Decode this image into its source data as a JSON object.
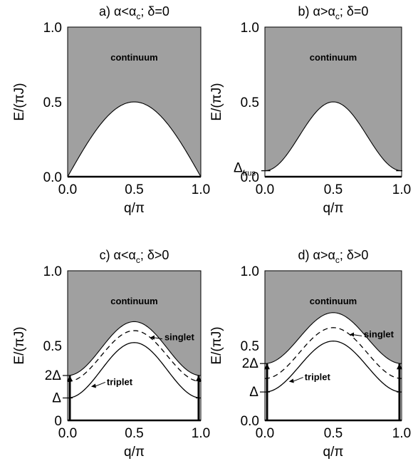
{
  "chart_data": [
    {
      "type": "area",
      "title": "a)  α<α; δ=0",
      "title_sub": "c",
      "xlabel": "q/π",
      "ylabel": "E/(πJ)",
      "xlim": [
        0,
        1
      ],
      "ylim": [
        0,
        1
      ],
      "xticks": [
        "0.0",
        "0.5",
        "1.0"
      ],
      "yticks": [
        "0.0",
        "0.5",
        "1.0"
      ],
      "continuum_label": "continuum",
      "continuum_min": 0.0,
      "continuum_max": 0.5,
      "continuum_shape": "sine",
      "colors": {
        "continuum": "#a0a0a0"
      }
    },
    {
      "type": "area",
      "title": "b)  α>α; δ=0",
      "title_sub": "c",
      "xlabel": "q/π",
      "ylabel": "E/(πJ)",
      "xlim": [
        0,
        1
      ],
      "ylim": [
        0,
        1
      ],
      "xticks": [
        "0.0",
        "0.5",
        "1.0"
      ],
      "yticks": [
        "0.0",
        "0.5",
        "1.0"
      ],
      "continuum_label": "continuum",
      "continuum_min": 0.04,
      "continuum_max": 0.5,
      "continuum_shape": "cosine",
      "gap_label": "Δ",
      "gap_label_sub": "frus",
      "gap_value": 0.04,
      "colors": {
        "continuum": "#a0a0a0"
      }
    },
    {
      "type": "line",
      "title": "c)  α<α; δ>0",
      "title_sub": "c",
      "xlabel": "q/π",
      "ylabel": "E/(πJ)",
      "xlim": [
        0,
        1
      ],
      "ylim": [
        0,
        1
      ],
      "xticks": [
        "0.0",
        "0.5",
        "1.0"
      ],
      "yticks": [
        "0",
        "0.5",
        "1.0"
      ],
      "continuum_label": "continuum",
      "continuum_min": 0.3,
      "continuum_max": 0.66,
      "series": [
        {
          "name": "triplet",
          "min": 0.15,
          "max": 0.52,
          "style": "solid"
        },
        {
          "name": "singlet",
          "min": 0.26,
          "max": 0.6,
          "style": "dashed"
        }
      ],
      "gap_labels": [
        "2Δ",
        "Δ"
      ],
      "gap_values": [
        0.3,
        0.15
      ],
      "colors": {
        "continuum": "#a0a0a0"
      }
    },
    {
      "type": "line",
      "title": "d)  α>α; δ>0",
      "title_sub": "c",
      "xlabel": "q/π",
      "ylabel": "E/(πJ)",
      "xlim": [
        0,
        1
      ],
      "ylim": [
        0,
        1
      ],
      "xticks": [
        "0.0",
        "0.5",
        "1.0"
      ],
      "yticks": [
        "0.0",
        "0.5",
        "1.0"
      ],
      "continuum_label": "continuum",
      "continuum_min": 0.38,
      "continuum_max": 0.72,
      "series": [
        {
          "name": "triplet",
          "min": 0.19,
          "max": 0.53,
          "style": "solid"
        },
        {
          "name": "singlet",
          "min": 0.28,
          "max": 0.62,
          "style": "dashed"
        }
      ],
      "gap_labels": [
        "2Δ",
        "Δ"
      ],
      "gap_values": [
        0.38,
        0.19
      ],
      "colors": {
        "continuum": "#a0a0a0"
      }
    }
  ]
}
